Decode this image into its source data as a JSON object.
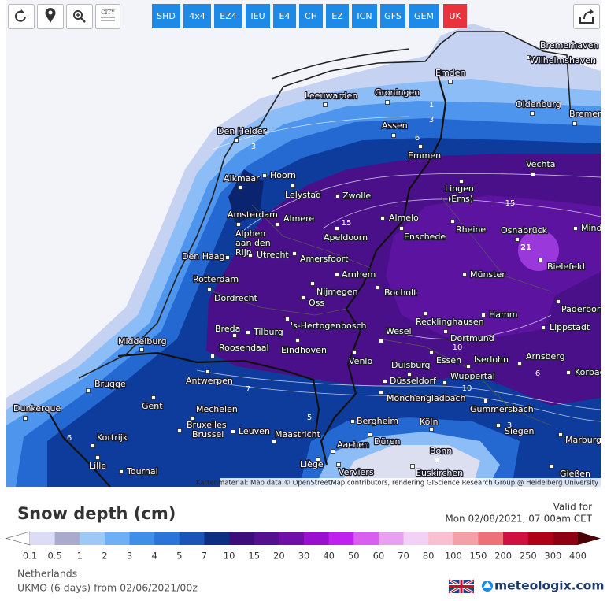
{
  "toolbar": {
    "city_icon": "CITY",
    "models": [
      "SHD",
      "4x4",
      "EZ4",
      "IEU",
      "E4",
      "CH",
      "EZ",
      "ICN",
      "GFS",
      "GEM",
      "UK"
    ]
  },
  "map": {
    "cities": [
      "Bremerhaven",
      "Wilhelmshaven",
      "Emden",
      "Leeuwarden",
      "Groningen",
      "Oldenburg",
      "Bremen",
      "Den Helder",
      "Assen",
      "Emmen",
      "Vechta",
      "Alkmaar",
      "Hoorn",
      "Lelystad",
      "Zwolle",
      "Lingen",
      "(Ems)",
      "Amsterdam",
      "Almere",
      "Almelo",
      "Alphen",
      "aan den",
      "Rijn",
      "Apeldoorn",
      "Enschede",
      "Rheine",
      "Osnabrück",
      "Minden",
      "Den Haag",
      "Utrecht",
      "Amersfoort",
      "Bielefeld",
      "Arnhem",
      "Münster",
      "Rotterdam",
      "Nijmegen",
      "Bocholt",
      "Dordrecht",
      "Oss",
      "Paderborn",
      "Hamm",
      "Breda",
      "Tilburg",
      "'s-Hertogenbosch",
      "Recklinghausen",
      "Lippstadt",
      "Wesel",
      "Middelburg",
      "Dortmund",
      "Roosendaal",
      "Eindhoven",
      "Arnsberg",
      "Venlo",
      "Essen",
      "Iserlohn",
      "Duisburg",
      "Korbach",
      "Wuppertal",
      "Antwerpen",
      "Brugge",
      "Düsseldorf",
      "Mönchengladbach",
      "Gent",
      "Dunkerque",
      "Mechelen",
      "Gummersbach",
      "Bergheim",
      "Köln",
      "Bruxelles",
      "Brussel",
      "Leuven",
      "Maastricht",
      "Siegen",
      "Kortrijk",
      "Düren",
      "Aachen",
      "Marburg",
      "Bonn",
      "Liège",
      "Lille",
      "Tournai",
      "Verviers",
      "Euskirchen",
      "Gießen"
    ],
    "contour_labels": [
      "21",
      "15",
      "15",
      "10",
      "10",
      "6",
      "3",
      "1",
      "3",
      "6",
      "3",
      "6",
      "7",
      "5"
    ],
    "attribution": "Kartenmaterial: Map data © OpenStreetMap contributors, rendering GIScience Research Group @ Heidelberg University"
  },
  "legend": {
    "title": "Snow depth (cm)",
    "valid_label": "Valid for",
    "valid_time": "Mon 02/08/2021, 07:00am CET",
    "scale": [
      0.1,
      0.5,
      1,
      2,
      3,
      4,
      5,
      7,
      10,
      15,
      20,
      30,
      40,
      50,
      60,
      70,
      80,
      100,
      150,
      200,
      250,
      300,
      400
    ]
  },
  "footer": {
    "region": "Netherlands",
    "run": "UKMO (6 days) from 02/06/2021/00z",
    "brand": "meteologix.com"
  }
}
